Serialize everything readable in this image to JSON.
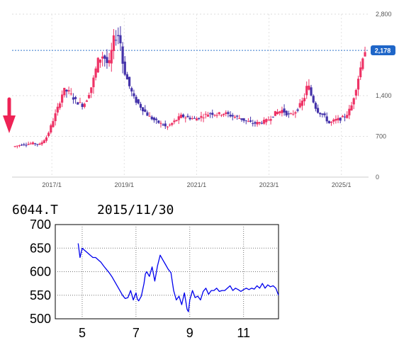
{
  "chart_data": [
    {
      "type": "candlestick",
      "yticks": [
        {
          "label": "2,800",
          "value": 2800
        },
        {
          "label": "1,400",
          "value": 1400
        },
        {
          "label": "700",
          "value": 700
        },
        {
          "label": "0",
          "value": 0
        }
      ],
      "xticks": [
        {
          "label": "2017/1",
          "value": 2017
        },
        {
          "label": "2019/1",
          "value": 2019
        },
        {
          "label": "2021/1",
          "value": 2021
        },
        {
          "label": "2023/1",
          "value": 2023
        },
        {
          "label": "2025/1",
          "value": 2025
        }
      ],
      "ylim": [
        0,
        2800
      ],
      "xlim": [
        2015.9,
        2025.75
      ],
      "current_price": {
        "label": "2,178",
        "value": 2178
      },
      "up_color": "#ee3366",
      "down_color": "#4433aa",
      "price_path": [
        [
          2015.95,
          520
        ],
        [
          2016.2,
          560
        ],
        [
          2016.5,
          580
        ],
        [
          2016.7,
          560
        ],
        [
          2016.9,
          700
        ],
        [
          2017.05,
          950
        ],
        [
          2017.2,
          1200
        ],
        [
          2017.35,
          1500
        ],
        [
          2017.5,
          1460
        ],
        [
          2017.7,
          1300
        ],
        [
          2017.9,
          1230
        ],
        [
          2018.0,
          1350
        ],
        [
          2018.15,
          1600
        ],
        [
          2018.3,
          2000
        ],
        [
          2018.45,
          2100
        ],
        [
          2018.6,
          1900
        ],
        [
          2018.75,
          2400
        ],
        [
          2018.9,
          2450
        ],
        [
          2019.0,
          1900
        ],
        [
          2019.15,
          1600
        ],
        [
          2019.3,
          1350
        ],
        [
          2019.5,
          1200
        ],
        [
          2019.7,
          1050
        ],
        [
          2019.9,
          960
        ],
        [
          2020.1,
          900
        ],
        [
          2020.2,
          850
        ],
        [
          2020.4,
          950
        ],
        [
          2020.6,
          1050
        ],
        [
          2020.8,
          1020
        ],
        [
          2021.0,
          1000
        ],
        [
          2021.2,
          1050
        ],
        [
          2021.4,
          1100
        ],
        [
          2021.6,
          1080
        ],
        [
          2021.8,
          1100
        ],
        [
          2022.0,
          1050
        ],
        [
          2022.2,
          1020
        ],
        [
          2022.4,
          960
        ],
        [
          2022.6,
          920
        ],
        [
          2022.8,
          940
        ],
        [
          2023.0,
          980
        ],
        [
          2023.2,
          1100
        ],
        [
          2023.4,
          1150
        ],
        [
          2023.6,
          1050
        ],
        [
          2023.8,
          1150
        ],
        [
          2024.0,
          1350
        ],
        [
          2024.1,
          1620
        ],
        [
          2024.2,
          1400
        ],
        [
          2024.35,
          1150
        ],
        [
          2024.55,
          1050
        ],
        [
          2024.7,
          920
        ],
        [
          2024.85,
          980
        ],
        [
          2025.0,
          1000
        ],
        [
          2025.15,
          1050
        ],
        [
          2025.3,
          1200
        ],
        [
          2025.42,
          1500
        ],
        [
          2025.55,
          1850
        ],
        [
          2025.65,
          2178
        ]
      ]
    },
    {
      "type": "line",
      "ticker": "6044.T",
      "date": "2015/11/30",
      "ylim": [
        500,
        700
      ],
      "xlim": [
        4,
        12.3
      ],
      "yticks": [
        {
          "label": "700",
          "value": 700
        },
        {
          "label": "650",
          "value": 650
        },
        {
          "label": "600",
          "value": 600
        },
        {
          "label": "550",
          "value": 550
        },
        {
          "label": "500",
          "value": 500
        }
      ],
      "xticks": [
        {
          "label": "5",
          "value": 5
        },
        {
          "label": "7",
          "value": 7
        },
        {
          "label": "9",
          "value": 9
        },
        {
          "label": "11",
          "value": 11
        }
      ],
      "line_color": "#0000ee",
      "x": [
        4.85,
        4.92,
        5.0,
        5.1,
        5.2,
        5.3,
        5.4,
        5.5,
        5.6,
        5.7,
        5.8,
        5.9,
        6.0,
        6.1,
        6.2,
        6.3,
        6.4,
        6.5,
        6.6,
        6.7,
        6.8,
        6.9,
        7.0,
        7.05,
        7.1,
        7.2,
        7.3,
        7.35,
        7.4,
        7.5,
        7.6,
        7.7,
        7.8,
        7.9,
        8.0,
        8.1,
        8.2,
        8.3,
        8.4,
        8.5,
        8.6,
        8.7,
        8.8,
        8.9,
        8.95,
        9.0,
        9.1,
        9.2,
        9.3,
        9.4,
        9.5,
        9.6,
        9.7,
        9.8,
        9.9,
        10.0,
        10.1,
        10.2,
        10.3,
        10.4,
        10.5,
        10.6,
        10.7,
        10.8,
        10.9,
        11.0,
        11.1,
        11.2,
        11.3,
        11.4,
        11.5,
        11.6,
        11.7,
        11.8,
        11.9,
        12.0,
        12.1,
        12.2,
        12.3
      ],
      "y": [
        660,
        630,
        650,
        645,
        640,
        635,
        630,
        630,
        625,
        620,
        612,
        605,
        598,
        590,
        580,
        570,
        560,
        550,
        543,
        545,
        560,
        540,
        555,
        542,
        538,
        548,
        575,
        595,
        600,
        590,
        610,
        580,
        612,
        635,
        625,
        615,
        605,
        598,
        560,
        540,
        548,
        530,
        555,
        520,
        515,
        540,
        560,
        545,
        548,
        540,
        558,
        565,
        552,
        560,
        560,
        565,
        558,
        560,
        560,
        565,
        570,
        560,
        565,
        562,
        558,
        562,
        565,
        562,
        565,
        563,
        570,
        565,
        575,
        565,
        572,
        568,
        570,
        565,
        550
      ]
    }
  ]
}
